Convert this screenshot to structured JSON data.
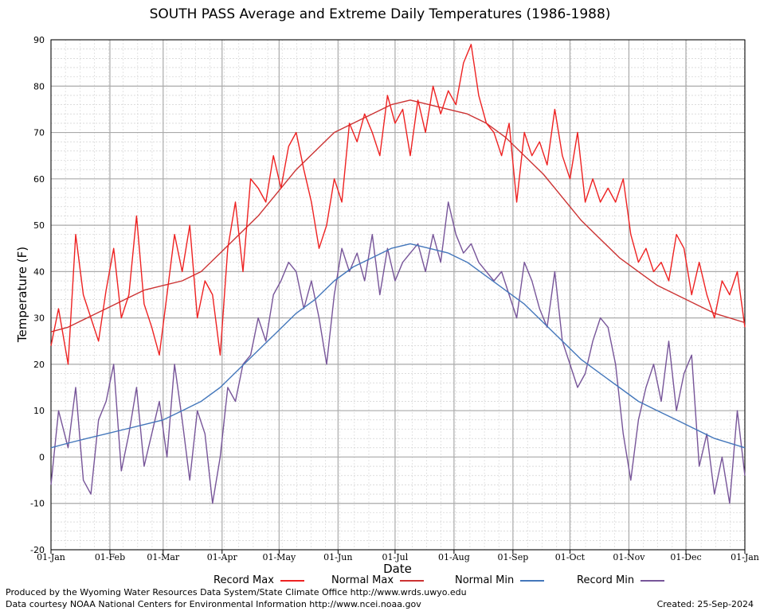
{
  "chart_data": {
    "type": "line",
    "title": "SOUTH PASS Average and Extreme Daily Temperatures (1986-1988)",
    "xlabel": "Date",
    "ylabel": "Temperature (F)",
    "ylim": [
      -20,
      90
    ],
    "y_ticks": [
      -20,
      -10,
      0,
      10,
      20,
      30,
      40,
      50,
      60,
      70,
      80,
      90
    ],
    "x_ticks": [
      {
        "day": 1,
        "label": "01-Jan"
      },
      {
        "day": 32,
        "label": "01-Feb"
      },
      {
        "day": 60,
        "label": "01-Mar"
      },
      {
        "day": 91,
        "label": "01-Apr"
      },
      {
        "day": 121,
        "label": "01-May"
      },
      {
        "day": 152,
        "label": "01-Jun"
      },
      {
        "day": 182,
        "label": "01-Jul"
      },
      {
        "day": 213,
        "label": "01-Aug"
      },
      {
        "day": 244,
        "label": "01-Sep"
      },
      {
        "day": 274,
        "label": "01-Oct"
      },
      {
        "day": 305,
        "label": "01-Nov"
      },
      {
        "day": 335,
        "label": "01-Dec"
      },
      {
        "day": 366,
        "label": "01-Jan"
      }
    ],
    "xlim": [
      1,
      366
    ],
    "grid": true,
    "legend_position": "bottom",
    "series": [
      {
        "name": "Record Max",
        "color": "#ee2222",
        "x": [
          1,
          5,
          10,
          14,
          18,
          22,
          26,
          30,
          34,
          38,
          42,
          46,
          50,
          54,
          58,
          62,
          66,
          70,
          74,
          78,
          82,
          86,
          90,
          94,
          98,
          102,
          106,
          110,
          114,
          118,
          122,
          126,
          130,
          134,
          138,
          142,
          146,
          150,
          154,
          158,
          162,
          166,
          170,
          174,
          178,
          182,
          186,
          190,
          194,
          198,
          202,
          206,
          210,
          214,
          218,
          222,
          226,
          230,
          234,
          238,
          242,
          246,
          250,
          254,
          258,
          262,
          266,
          270,
          274,
          278,
          282,
          286,
          290,
          294,
          298,
          302,
          306,
          310,
          314,
          318,
          322,
          326,
          330,
          334,
          338,
          342,
          346,
          350,
          354,
          358,
          362,
          366
        ],
        "values": [
          24,
          32,
          20,
          48,
          35,
          30,
          25,
          36,
          45,
          30,
          35,
          52,
          33,
          28,
          22,
          35,
          48,
          40,
          50,
          30,
          38,
          35,
          22,
          45,
          55,
          40,
          60,
          58,
          55,
          65,
          58,
          67,
          70,
          62,
          55,
          45,
          50,
          60,
          55,
          72,
          68,
          74,
          70,
          65,
          78,
          72,
          75,
          65,
          77,
          70,
          80,
          74,
          79,
          76,
          85,
          89,
          78,
          72,
          70,
          65,
          72,
          55,
          70,
          65,
          68,
          63,
          75,
          65,
          60,
          70,
          55,
          60,
          55,
          58,
          55,
          60,
          48,
          42,
          45,
          40,
          42,
          38,
          48,
          45,
          35,
          42,
          35,
          30,
          38,
          35,
          40,
          28
        ]
      },
      {
        "name": "Normal Max",
        "color": "#cc3333",
        "x": [
          1,
          10,
          20,
          30,
          40,
          50,
          60,
          70,
          80,
          90,
          100,
          110,
          120,
          130,
          140,
          150,
          160,
          170,
          180,
          190,
          200,
          210,
          220,
          230,
          240,
          250,
          260,
          270,
          280,
          290,
          300,
          310,
          320,
          330,
          340,
          350,
          366
        ],
        "values": [
          27,
          28,
          30,
          32,
          34,
          36,
          37,
          38,
          40,
          44,
          48,
          52,
          57,
          62,
          66,
          70,
          72,
          74,
          76,
          77,
          76,
          75,
          74,
          72,
          69,
          65,
          61,
          56,
          51,
          47,
          43,
          40,
          37,
          35,
          33,
          31,
          29
        ]
      },
      {
        "name": "Normal Min",
        "color": "#4477bb",
        "x": [
          1,
          10,
          20,
          30,
          40,
          50,
          60,
          70,
          80,
          90,
          100,
          110,
          120,
          130,
          140,
          150,
          160,
          170,
          180,
          190,
          200,
          210,
          220,
          230,
          240,
          250,
          260,
          270,
          280,
          290,
          300,
          310,
          320,
          330,
          340,
          350,
          366
        ],
        "values": [
          2,
          3,
          4,
          5,
          6,
          7,
          8,
          10,
          12,
          15,
          19,
          23,
          27,
          31,
          34,
          38,
          41,
          43,
          45,
          46,
          45,
          44,
          42,
          39,
          36,
          33,
          29,
          25,
          21,
          18,
          15,
          12,
          10,
          8,
          6,
          4,
          2
        ]
      },
      {
        "name": "Record Min",
        "color": "#775599",
        "x": [
          1,
          5,
          10,
          14,
          18,
          22,
          26,
          30,
          34,
          38,
          42,
          46,
          50,
          54,
          58,
          62,
          66,
          70,
          74,
          78,
          82,
          86,
          90,
          94,
          98,
          102,
          106,
          110,
          114,
          118,
          122,
          126,
          130,
          134,
          138,
          142,
          146,
          150,
          154,
          158,
          162,
          166,
          170,
          174,
          178,
          182,
          186,
          190,
          194,
          198,
          202,
          206,
          210,
          214,
          218,
          222,
          226,
          230,
          234,
          238,
          242,
          246,
          250,
          254,
          258,
          262,
          266,
          270,
          274,
          278,
          282,
          286,
          290,
          294,
          298,
          302,
          306,
          310,
          314,
          318,
          322,
          326,
          330,
          334,
          338,
          342,
          346,
          350,
          354,
          358,
          362,
          366
        ],
        "values": [
          -6,
          10,
          2,
          15,
          -5,
          -8,
          8,
          12,
          20,
          -3,
          5,
          15,
          -2,
          5,
          12,
          0,
          20,
          8,
          -5,
          10,
          5,
          -10,
          0,
          15,
          12,
          20,
          22,
          30,
          25,
          35,
          38,
          42,
          40,
          32,
          38,
          30,
          20,
          35,
          45,
          40,
          44,
          38,
          48,
          35,
          45,
          38,
          42,
          44,
          46,
          40,
          48,
          42,
          55,
          48,
          44,
          46,
          42,
          40,
          38,
          40,
          35,
          30,
          42,
          38,
          32,
          28,
          40,
          25,
          20,
          15,
          18,
          25,
          30,
          28,
          20,
          5,
          -5,
          8,
          15,
          20,
          12,
          25,
          10,
          18,
          22,
          -2,
          5,
          -8,
          0,
          -10,
          10,
          -4
        ]
      }
    ]
  },
  "credits": {
    "line1": "Produced by the Wyoming Water Resources Data System/State Climate Office http://www.wrds.uwyo.edu",
    "line2": "Data courtesy NOAA National Centers for Environmental Information http://www.ncei.noaa.gov",
    "created": "Created: 25-Sep-2024"
  }
}
